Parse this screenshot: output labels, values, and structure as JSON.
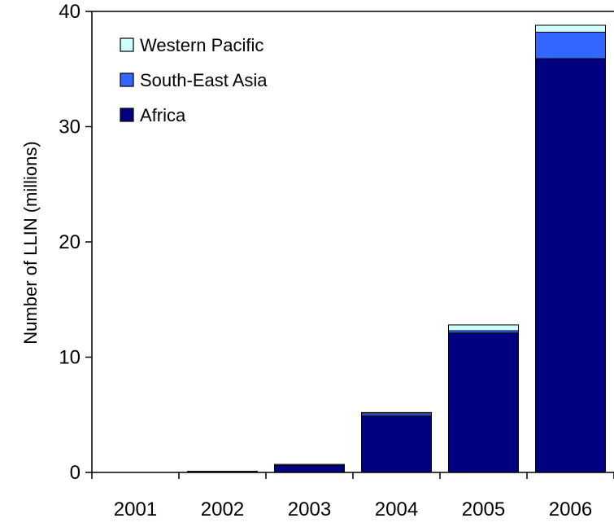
{
  "chart_data": {
    "type": "bar",
    "stacked": true,
    "title": "",
    "xlabel": "",
    "ylabel": "Number of LLIN (millions)",
    "ylim": [
      0,
      40
    ],
    "yticks": [
      0,
      10,
      20,
      30,
      40
    ],
    "categories": [
      "2001",
      "2002",
      "2003",
      "2004",
      "2005",
      "2006"
    ],
    "series": [
      {
        "name": "Africa",
        "color": "#000080",
        "values": [
          0.0,
          0.1,
          0.6,
          4.9,
          12.1,
          35.9
        ]
      },
      {
        "name": "South-East Asia",
        "color": "#3366ff",
        "values": [
          0.0,
          0.0,
          0.1,
          0.2,
          0.2,
          2.3
        ]
      },
      {
        "name": "Western Pacific",
        "color": "#ccffff",
        "values": [
          0.0,
          0.0,
          0.0,
          0.1,
          0.5,
          0.6
        ]
      }
    ],
    "legend": {
      "position": "top-left",
      "order": [
        "Western Pacific",
        "South-East Asia",
        "Africa"
      ]
    },
    "grid": false
  }
}
